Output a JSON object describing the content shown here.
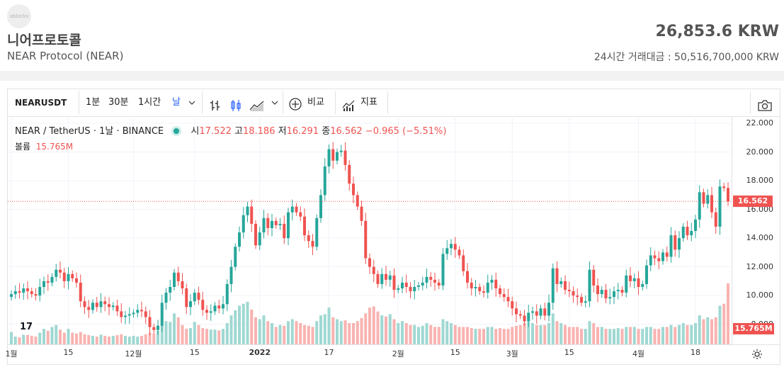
{
  "header": {
    "logo_text": "ablocks",
    "coin_name": "니어프로토콜",
    "coin_subtitle": "NEAR Protocol (NEAR)",
    "price": "26,853.6 KRW",
    "volume_24h": "24시간 거래대금 : 50,516,700,000 KRW"
  },
  "toolbar": {
    "symbol": "NEARUSDT",
    "intervals": [
      "1분",
      "30분",
      "1시간",
      "날"
    ],
    "active_interval": "날",
    "compare_label": "비교",
    "indicators_label": "지표",
    "icons": [
      "chevron-down-icon",
      "bar-style-icon",
      "candle-style-icon",
      "area-style-icon",
      "chevron-down-icon",
      "plus-circle-icon",
      "indicators-icon",
      "camera-icon"
    ]
  },
  "legend": {
    "pair": "NEAR / TetherUS",
    "interval": "1날",
    "exchange": "BINANCE",
    "open_label": "시",
    "open": "17.522",
    "high_label": "고",
    "high": "18.186",
    "low_label": "저",
    "low": "16.291",
    "close_label": "종",
    "close": "16.562",
    "change": "−0.965 (−5.51%)",
    "volume_label": "볼륨",
    "volume": "15.765M"
  },
  "chart_data": {
    "type": "candlestick",
    "y_ticks": [
      "22.000",
      "20.000",
      "18.000",
      "16.000",
      "14.000",
      "12.000",
      "10.000",
      "8.000"
    ],
    "ylim": [
      6.6,
      22.5
    ],
    "last_price_label": "16.562",
    "last_volume_label": "15.765M",
    "x_ticks": [
      "1월",
      "15",
      "12월",
      "15",
      "2022",
      "17",
      "2월",
      "15",
      "3월",
      "15",
      "4월",
      "18"
    ],
    "x_tick_index": [
      0,
      14,
      30,
      45,
      61,
      78,
      95,
      109,
      123,
      137,
      154,
      168
    ],
    "close": [
      10.1,
      10.3,
      10.2,
      10.5,
      10.3,
      10.1,
      10.0,
      10.6,
      11.0,
      10.9,
      11.3,
      11.8,
      11.6,
      11.0,
      11.5,
      11.2,
      10.9,
      9.6,
      9.2,
      9.0,
      9.5,
      9.2,
      9.6,
      9.4,
      9.2,
      9.3,
      8.9,
      8.5,
      8.6,
      8.7,
      8.8,
      9.0,
      8.9,
      8.5,
      7.8,
      7.6,
      7.9,
      9.5,
      10.2,
      10.6,
      11.6,
      11.0,
      10.5,
      9.2,
      9.6,
      10.2,
      9.7,
      9.0,
      8.8,
      8.9,
      9.3,
      9.1,
      9.4,
      10.8,
      12.0,
      13.4,
      14.4,
      15.6,
      16.2,
      15.0,
      13.5,
      14.4,
      15.4,
      14.7,
      15.2,
      14.9,
      15.0,
      14.0,
      15.8,
      16.2,
      15.8,
      15.5,
      14.2,
      13.8,
      13.4,
      15.4,
      17.0,
      19.0,
      20.2,
      19.4,
      20.0,
      20.1,
      19.1,
      17.8,
      17.0,
      16.2,
      15.2,
      12.6,
      12.0,
      11.5,
      10.8,
      11.5,
      11.1,
      11.4,
      10.4,
      10.5,
      10.9,
      10.6,
      10.3,
      10.6,
      10.7,
      10.9,
      11.3,
      11.1,
      10.9,
      10.7,
      12.9,
      13.3,
      13.6,
      13.2,
      12.8,
      11.7,
      10.9,
      10.5,
      10.6,
      10.3,
      10.2,
      10.9,
      11.1,
      10.5,
      10.1,
      9.9,
      9.6,
      9.1,
      8.7,
      8.6,
      8.2,
      8.8,
      8.9,
      8.6,
      9.1,
      8.6,
      9.5,
      11.9,
      10.8,
      11.0,
      10.4,
      10.3,
      10.0,
      9.9,
      9.5,
      9.6,
      11.8,
      10.7,
      10.1,
      10.4,
      9.8,
      9.9,
      10.3,
      10.4,
      10.2,
      11.4,
      11.0,
      11.2,
      10.6,
      10.8,
      12.1,
      12.8,
      12.6,
      12.4,
      13.0,
      12.7,
      14.2,
      13.2,
      14.0,
      14.8,
      14.2,
      14.5,
      15.3,
      17.2,
      16.4,
      17.0,
      15.8,
      14.8,
      17.6,
      17.5,
      16.562
    ],
    "volume": [
      3.2,
      2.0,
      1.8,
      3.5,
      2.6,
      2.2,
      2.0,
      3.0,
      4.0,
      3.5,
      4.5,
      5.0,
      3.8,
      3.0,
      4.0,
      3.0,
      2.8,
      3.2,
      2.6,
      2.4,
      2.2,
      2.0,
      2.5,
      2.2,
      2.0,
      2.2,
      2.4,
      2.6,
      2.2,
      2.0,
      2.2,
      2.0,
      2.2,
      2.6,
      3.0,
      2.8,
      3.5,
      5.0,
      6.0,
      5.8,
      8.0,
      7.0,
      5.0,
      4.0,
      4.2,
      5.8,
      5.0,
      4.2,
      4.0,
      3.8,
      3.8,
      3.6,
      4.0,
      5.5,
      7.5,
      8.8,
      10.0,
      10.5,
      11.0,
      9.0,
      7.0,
      6.5,
      7.5,
      6.0,
      5.5,
      4.5,
      5.0,
      4.8,
      6.0,
      6.5,
      6.0,
      5.5,
      5.0,
      4.8,
      4.5,
      6.0,
      7.5,
      7.8,
      9.5,
      7.0,
      6.5,
      6.0,
      6.2,
      5.5,
      5.5,
      6.0,
      6.8,
      8.0,
      9.5,
      9.8,
      8.5,
      7.5,
      7.2,
      7.8,
      6.5,
      5.5,
      6.0,
      5.5,
      5.0,
      5.0,
      4.5,
      4.8,
      5.5,
      5.0,
      4.5,
      4.5,
      6.5,
      6.0,
      5.5,
      5.0,
      4.5,
      4.5,
      4.5,
      4.2,
      4.0,
      4.0,
      4.0,
      4.5,
      4.5,
      4.0,
      4.2,
      4.0,
      4.0,
      4.5,
      4.8,
      5.0,
      5.5,
      5.8,
      5.5,
      5.0,
      5.0,
      5.0,
      5.5,
      8.0,
      6.0,
      5.5,
      5.0,
      4.5,
      4.5,
      4.5,
      4.0,
      4.0,
      6.0,
      5.5,
      4.5,
      4.5,
      4.0,
      4.0,
      4.0,
      4.2,
      4.0,
      4.5,
      4.5,
      4.5,
      4.0,
      4.0,
      4.5,
      4.5,
      4.0,
      4.0,
      4.5,
      4.5,
      5.0,
      4.5,
      5.0,
      5.5,
      5.0,
      5.0,
      5.5,
      7.5,
      6.5,
      7.0,
      6.5,
      7.0,
      10.0,
      10.5,
      15.765
    ]
  },
  "footer": {
    "tradingview_logo": "17",
    "settings_icon": "gear-icon"
  }
}
